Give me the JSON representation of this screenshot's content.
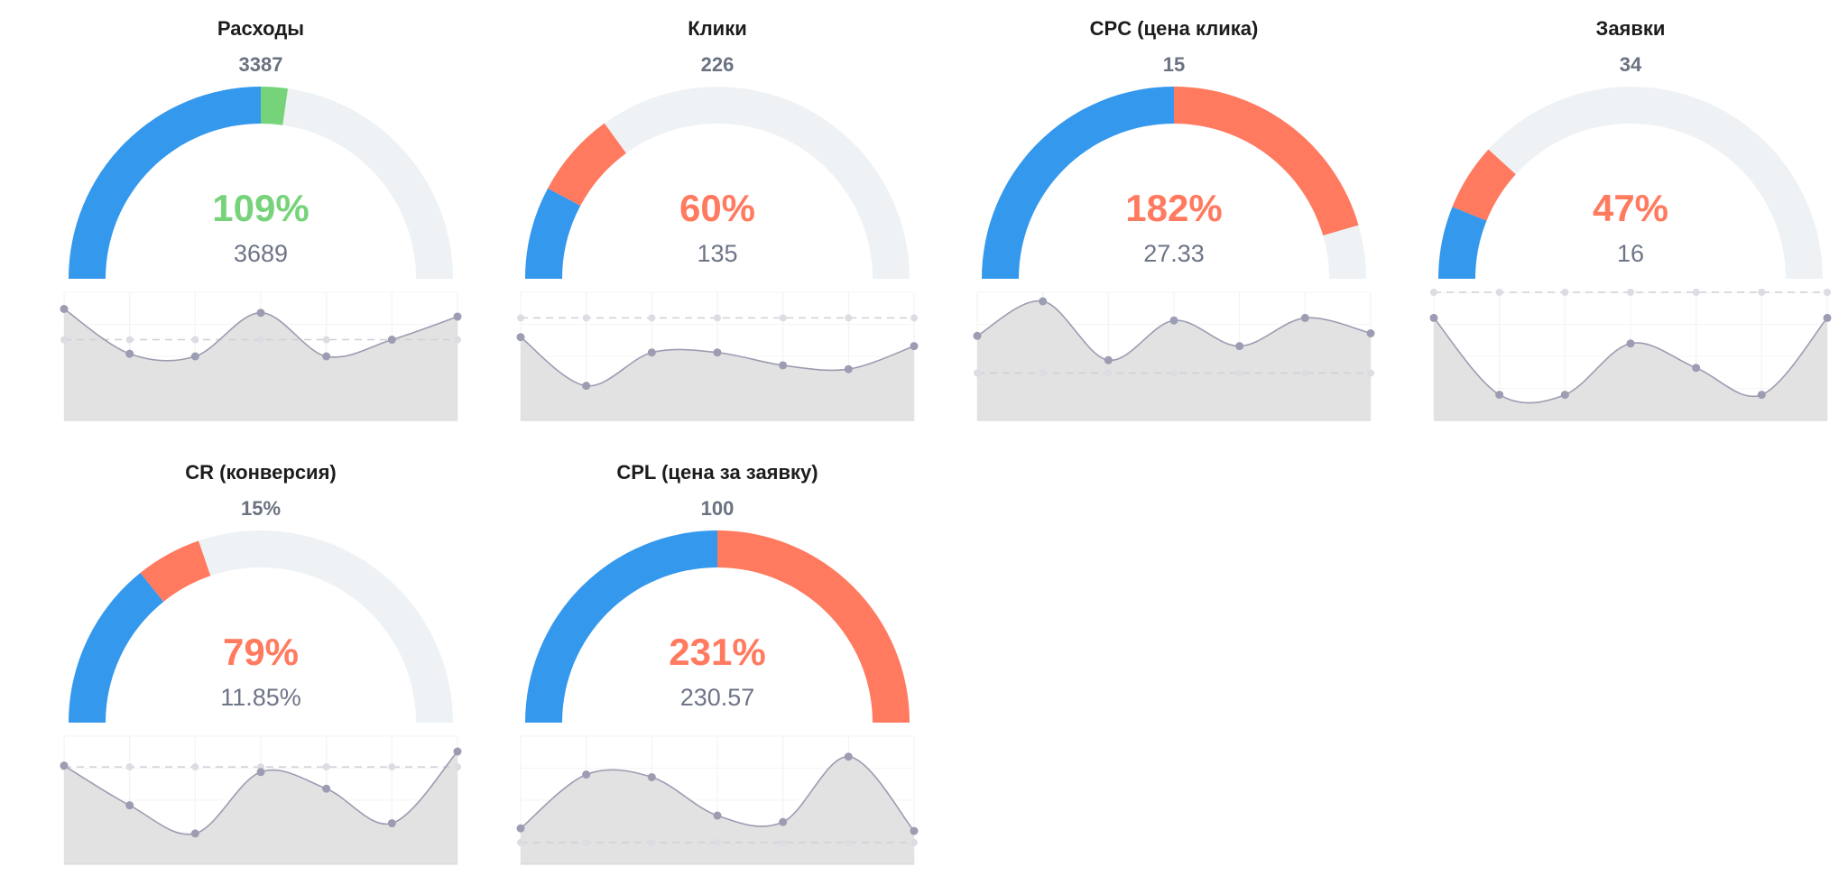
{
  "colors": {
    "blue": "#3498ed",
    "red": "#ff7a5f",
    "green": "#77d37a",
    "track": "#eff2f5",
    "line": "#9c9cb2",
    "area": "#e2e2e2",
    "target_line": "#cfcfd6",
    "title": "#1c1c1c",
    "plan": "#6a7280",
    "fact": "#6e7587"
  },
  "chart_data": [
    {
      "type": "gauge",
      "title": "Расходы",
      "plan_label": "3387",
      "percent_label": "109%",
      "fact_label": "3689",
      "percent": 109,
      "status": "green",
      "sparkline": {
        "values": [
          8.7,
          5.2,
          5.0,
          8.4,
          5.0,
          6.3,
          8.1
        ],
        "target": 6.3,
        "ylim": [
          0,
          10
        ]
      }
    },
    {
      "type": "gauge",
      "title": "Клики",
      "plan_label": "226",
      "percent_label": "60%",
      "fact_label": "135",
      "percent": 60,
      "status": "red",
      "sparkline": {
        "values": [
          6.5,
          2.7,
          5.3,
          5.3,
          4.3,
          4.0,
          5.8
        ],
        "target": 8.0,
        "ylim": [
          0,
          10
        ]
      }
    },
    {
      "type": "gauge",
      "title": "CPC (цена клика)",
      "plan_label": "15",
      "percent_label": "182%",
      "fact_label": "27.33",
      "percent": 182,
      "status": "red",
      "sparkline": {
        "values": [
          6.6,
          9.3,
          4.7,
          7.8,
          5.8,
          8.0,
          6.8
        ],
        "target": 3.7,
        "ylim": [
          0,
          10
        ]
      }
    },
    {
      "type": "gauge",
      "title": "Заявки",
      "plan_label": "34",
      "percent_label": "47%",
      "fact_label": "16",
      "percent": 47,
      "status": "red",
      "sparkline": {
        "values": [
          8.0,
          2.0,
          2.0,
          6.0,
          4.1,
          2.0,
          8.0
        ],
        "target": 10.0,
        "ylim": [
          0,
          10
        ]
      }
    },
    {
      "type": "gauge",
      "title": "CR (конверсия)",
      "plan_label": "15%",
      "percent_label": "79%",
      "fact_label": "11.85%",
      "percent": 79,
      "status": "red",
      "sparkline": {
        "values": [
          7.7,
          4.6,
          2.4,
          7.2,
          5.9,
          3.2,
          8.8
        ],
        "target": 7.6,
        "ylim": [
          0,
          10
        ]
      }
    },
    {
      "type": "gauge",
      "title": "CPL (цена за заявку)",
      "plan_label": "100",
      "percent_label": "231%",
      "fact_label": "230.57",
      "percent": 231,
      "status": "red",
      "sparkline": {
        "values": [
          2.8,
          7.0,
          6.8,
          3.8,
          3.3,
          8.4,
          2.6
        ],
        "target": 1.7,
        "ylim": [
          0,
          10
        ]
      }
    }
  ]
}
